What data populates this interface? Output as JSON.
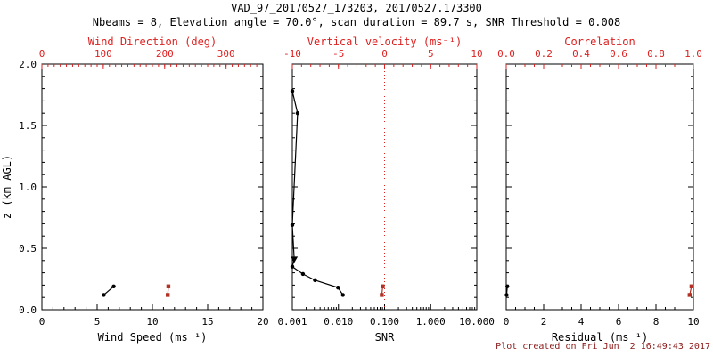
{
  "title": "VAD_97_20170527_173203, 20170527.173300",
  "subtitle": "Nbeams = 8, Elevation angle = 70.0°, scan duration = 89.7 s, SNR Threshold = 0.008",
  "footer": "Plot created on Fri Jun  2 16:49:43 2017",
  "colors": {
    "black": "#000000",
    "axis_red": "#dd2020",
    "point_red": "#b03224",
    "footer_red": "#8b1a1a",
    "background": "#ffffff"
  },
  "y_axis": {
    "label": "z (km AGL)",
    "range": [
      0,
      2
    ],
    "tick_values": [
      0,
      0.5,
      1,
      1.5,
      2
    ],
    "tick_labels": [
      "0.0",
      "0.5",
      "1.0",
      "1.5",
      "2.0"
    ],
    "minor_step": 0.1
  },
  "chart_data": [
    {
      "id": "wind",
      "type": "scatter",
      "bottom_axis": {
        "label": "Wind Speed (ms⁻¹)",
        "scale": "linear",
        "range": [
          0,
          20
        ],
        "tick_values": [
          0,
          5,
          10,
          15,
          20
        ],
        "tick_labels": [
          "0",
          "5",
          "10",
          "15",
          "20"
        ],
        "minor_step": 1
      },
      "top_axis": {
        "label": "Wind Direction (deg)",
        "scale": "linear",
        "range": [
          0,
          360
        ],
        "tick_values": [
          0,
          100,
          200,
          300
        ],
        "tick_labels": [
          "0",
          "100",
          "200",
          "300"
        ],
        "minor_step": 10
      },
      "series": [
        {
          "name": "wind-speed",
          "axis": "bottom",
          "color": "black",
          "marker": "circle",
          "line": true,
          "points": [
            {
              "x": 5.6,
              "z": 0.12
            },
            {
              "x": 6.5,
              "z": 0.19
            }
          ]
        },
        {
          "name": "wind-direction",
          "axis": "top",
          "color": "red",
          "marker": "square",
          "line": true,
          "points": [
            {
              "x": 205,
              "z": 0.12
            },
            {
              "x": 206,
              "z": 0.19
            }
          ]
        }
      ]
    },
    {
      "id": "snr",
      "type": "scatter",
      "bottom_axis": {
        "label": "SNR",
        "scale": "log",
        "range": [
          0.001,
          10
        ],
        "tick_values": [
          0.001,
          0.01,
          0.1,
          1,
          10
        ],
        "tick_labels": [
          "0.001",
          "0.010",
          "0.100",
          "1.000",
          "10.000"
        ]
      },
      "top_axis": {
        "label": "Vertical velocity (ms⁻¹)",
        "scale": "linear",
        "range": [
          -10,
          10
        ],
        "tick_values": [
          -10,
          -5,
          0,
          5,
          10
        ],
        "tick_labels": [
          "-10",
          "-5",
          "0",
          "5",
          "10"
        ],
        "minor_step": 1
      },
      "reference_line": {
        "axis": "top",
        "value": 0,
        "style": "dotted",
        "color": "red"
      },
      "series": [
        {
          "name": "snr-profile",
          "axis": "bottom",
          "color": "black",
          "marker": "circle",
          "line": true,
          "points": [
            {
              "x": 0.0125,
              "z": 0.12
            },
            {
              "x": 0.0098,
              "z": 0.18
            },
            {
              "x": 0.0031,
              "z": 0.24
            },
            {
              "x": 0.0017,
              "z": 0.29
            },
            {
              "x": 0.001,
              "z": 0.35
            },
            {
              "x": 0.0011,
              "z": 0.41,
              "marker": "triangle-down"
            },
            {
              "x": 0.001,
              "z": 0.69
            },
            {
              "x": 0.0013,
              "z": 1.6
            },
            {
              "x": 0.001,
              "z": 1.78
            }
          ]
        },
        {
          "name": "vertical-velocity",
          "axis": "top",
          "color": "red",
          "marker": "square",
          "line": true,
          "points": [
            {
              "x": -0.3,
              "z": 0.12
            },
            {
              "x": -0.2,
              "z": 0.19
            }
          ]
        }
      ]
    },
    {
      "id": "residual",
      "type": "scatter",
      "bottom_axis": {
        "label": "Residual (ms⁻¹)",
        "scale": "linear",
        "range": [
          0,
          10
        ],
        "tick_values": [
          0,
          2,
          4,
          6,
          8,
          10
        ],
        "tick_labels": [
          "0",
          "2",
          "4",
          "6",
          "8",
          "10"
        ],
        "minor_step": 0.5
      },
      "top_axis": {
        "label": "Correlation",
        "scale": "linear",
        "range": [
          0,
          1
        ],
        "tick_values": [
          0,
          0.2,
          0.4,
          0.6,
          0.8,
          1
        ],
        "tick_labels": [
          "0.0",
          "0.2",
          "0.4",
          "0.6",
          "0.8",
          "1.0"
        ],
        "minor_step": 0.05
      },
      "series": [
        {
          "name": "residual",
          "axis": "bottom",
          "color": "black",
          "marker": "circle",
          "line": true,
          "points": [
            {
              "x": 0.02,
              "z": 0.12
            },
            {
              "x": 0.06,
              "z": 0.19
            }
          ]
        },
        {
          "name": "correlation",
          "axis": "top",
          "color": "red",
          "marker": "square",
          "line": true,
          "points": [
            {
              "x": 0.98,
              "z": 0.12
            },
            {
              "x": 0.99,
              "z": 0.19
            }
          ]
        }
      ]
    }
  ]
}
